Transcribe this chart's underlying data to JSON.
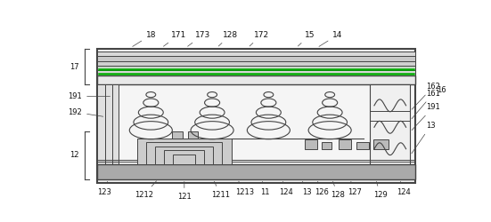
{
  "fig_width": 5.51,
  "fig_height": 2.5,
  "dpi": 100,
  "bg_color": "#ffffff",
  "lc": "#444444",
  "gc": "#00aa00",
  "frame_fill": "#f5f5f5",
  "layer_fill": "#e0e0e0",
  "dark_fill": "#999999",
  "substrate_fill": "#b0b0b0"
}
